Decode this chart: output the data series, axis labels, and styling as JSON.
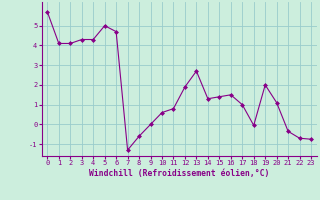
{
  "x": [
    0,
    1,
    2,
    3,
    4,
    5,
    6,
    7,
    8,
    9,
    10,
    11,
    12,
    13,
    14,
    15,
    16,
    17,
    18,
    19,
    20,
    21,
    22,
    23
  ],
  "y": [
    5.7,
    4.1,
    4.1,
    4.3,
    4.3,
    5.0,
    4.7,
    -1.3,
    -0.6,
    0.0,
    0.6,
    0.8,
    1.9,
    2.7,
    1.3,
    1.4,
    1.5,
    1.0,
    -0.05,
    2.0,
    1.1,
    -0.35,
    -0.7,
    -0.75
  ],
  "line_color": "#880088",
  "marker": "D",
  "marker_size": 2.0,
  "background_color": "#cceedd",
  "grid_color": "#99cccc",
  "xlabel": "Windchill (Refroidissement éolien,°C)",
  "xlabel_color": "#880088",
  "tick_color": "#880088",
  "label_color": "#880088",
  "ylim": [
    -1.6,
    6.2
  ],
  "xlim": [
    -0.5,
    23.5
  ],
  "yticks": [
    -1,
    0,
    1,
    2,
    3,
    4,
    5
  ],
  "xticks": [
    0,
    1,
    2,
    3,
    4,
    5,
    6,
    7,
    8,
    9,
    10,
    11,
    12,
    13,
    14,
    15,
    16,
    17,
    18,
    19,
    20,
    21,
    22,
    23
  ]
}
